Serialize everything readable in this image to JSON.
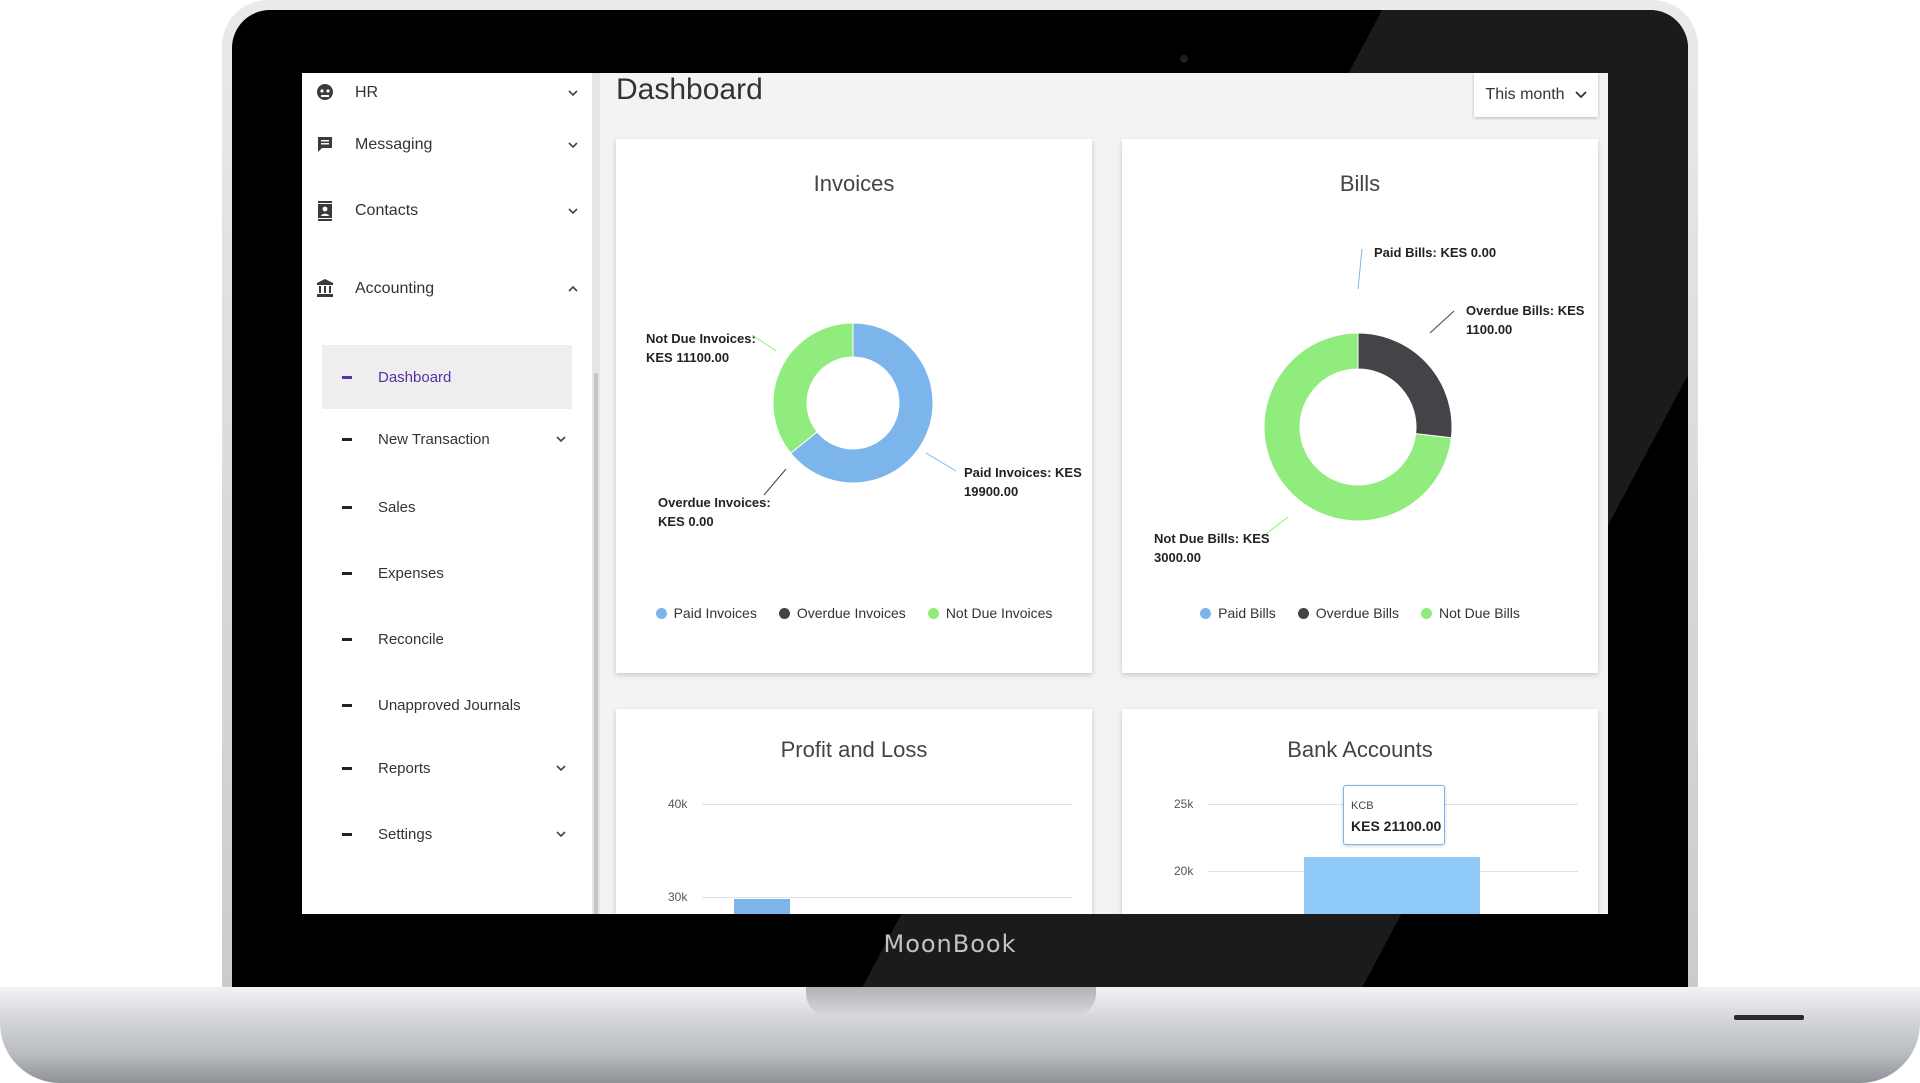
{
  "device": {
    "brand": "MoonBook"
  },
  "sidebar": {
    "items": [
      {
        "label": "HR",
        "icon": "hr-icon",
        "expanded": false
      },
      {
        "label": "Messaging",
        "icon": "message-icon",
        "expanded": false
      },
      {
        "label": "Contacts",
        "icon": "contacts-icon",
        "expanded": false
      },
      {
        "label": "Accounting",
        "icon": "bank-icon",
        "expanded": true
      }
    ],
    "accounting_children": [
      {
        "label": "Dashboard",
        "active": true,
        "has_children": false
      },
      {
        "label": "New Transaction",
        "active": false,
        "has_children": true
      },
      {
        "label": "Sales",
        "active": false,
        "has_children": false
      },
      {
        "label": "Expenses",
        "active": false,
        "has_children": false
      },
      {
        "label": "Reconcile",
        "active": false,
        "has_children": false
      },
      {
        "label": "Unapproved Journals",
        "active": false,
        "has_children": false
      },
      {
        "label": "Reports",
        "active": false,
        "has_children": true
      },
      {
        "label": "Settings",
        "active": false,
        "has_children": true
      }
    ]
  },
  "header": {
    "title": "Dashboard",
    "period": "This month"
  },
  "colors": {
    "paid": "#7cb5ec",
    "overdue": "#434348",
    "not_due": "#90ed7d",
    "accent": "#5b2fa8"
  },
  "invoices": {
    "title": "Invoices",
    "callouts": {
      "not_due_1": "Not Due Invoices:",
      "not_due_2": "KES 11100.00",
      "paid_1": "Paid Invoices: KES",
      "paid_2": "19900.00",
      "overdue_1": "Overdue Invoices:",
      "overdue_2": "KES 0.00"
    },
    "legend": [
      "Paid Invoices",
      "Overdue Invoices",
      "Not Due Invoices"
    ]
  },
  "bills": {
    "title": "Bills",
    "callouts": {
      "paid_1": "Paid Bills: KES 0.00",
      "overdue_1": "Overdue Bills: KES",
      "overdue_2": "1100.00",
      "not_due_1": "Not Due Bills: KES",
      "not_due_2": "3000.00"
    },
    "legend": [
      "Paid Bills",
      "Overdue Bills",
      "Not Due Bills"
    ]
  },
  "profit_loss": {
    "title": "Profit and Loss",
    "ticks": [
      "40k",
      "30k"
    ]
  },
  "bank_accounts": {
    "title": "Bank Accounts",
    "ticks": [
      "25k",
      "20k"
    ],
    "tooltip": {
      "name": "KCB",
      "value": "KES 21100.00"
    }
  },
  "chart_data": [
    {
      "type": "pie",
      "title": "Invoices",
      "labels": [
        "Paid Invoices",
        "Overdue Invoices",
        "Not Due Invoices"
      ],
      "values": [
        19900,
        0,
        11100
      ]
    },
    {
      "type": "pie",
      "title": "Bills",
      "labels": [
        "Paid Bills",
        "Overdue Bills",
        "Not Due Bills"
      ],
      "values": [
        0,
        1100,
        3000
      ]
    },
    {
      "type": "bar",
      "title": "Profit and Loss",
      "yticks": [
        "40k",
        "30k"
      ]
    },
    {
      "type": "bar",
      "title": "Bank Accounts",
      "categories": [
        "KCB"
      ],
      "values": [
        21100
      ],
      "yticks": [
        "25k",
        "20k"
      ]
    }
  ]
}
